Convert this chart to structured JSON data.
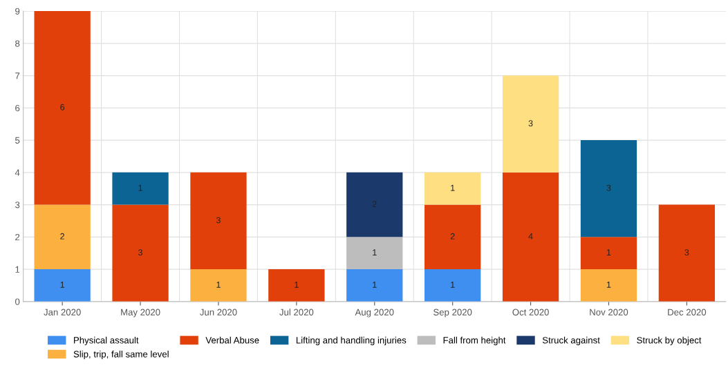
{
  "chart_data": {
    "type": "bar",
    "stacked": true,
    "data_labels": true,
    "grid": true,
    "legend": "bottom",
    "categories": [
      "Jan 2020",
      "May 2020",
      "Jun 2020",
      "Jul 2020",
      "Aug 2020",
      "Sep 2020",
      "Oct 2020",
      "Nov 2020",
      "Dec 2020"
    ],
    "ylim": [
      0,
      9
    ],
    "yticks": [
      0,
      1,
      2,
      3,
      4,
      5,
      6,
      7,
      8,
      9
    ],
    "series": [
      {
        "name": "Physical assault",
        "color": "#3f8ff0",
        "values": [
          1,
          null,
          null,
          null,
          1,
          1,
          null,
          null,
          null
        ]
      },
      {
        "name": "Slip, trip, fall same level",
        "color": "#fbb040",
        "values": [
          2,
          null,
          1,
          null,
          null,
          null,
          null,
          1,
          null
        ]
      },
      {
        "name": "Verbal Abuse",
        "color": "#e1400a",
        "values": [
          6,
          3,
          3,
          1,
          null,
          2,
          4,
          1,
          3
        ]
      },
      {
        "name": "Lifting and handling injuries",
        "color": "#0b6494",
        "values": [
          null,
          1,
          null,
          null,
          null,
          null,
          null,
          3,
          null
        ]
      },
      {
        "name": "Fall from height",
        "color": "#bdbdbd",
        "values": [
          null,
          null,
          null,
          null,
          1,
          null,
          null,
          null,
          null
        ]
      },
      {
        "name": "Struck against",
        "color": "#1b3a6b",
        "values": [
          null,
          null,
          null,
          null,
          2,
          null,
          null,
          null,
          null
        ]
      },
      {
        "name": "Struck by object",
        "color": "#fee083",
        "values": [
          null,
          null,
          null,
          null,
          null,
          1,
          3,
          null,
          null
        ]
      }
    ]
  }
}
